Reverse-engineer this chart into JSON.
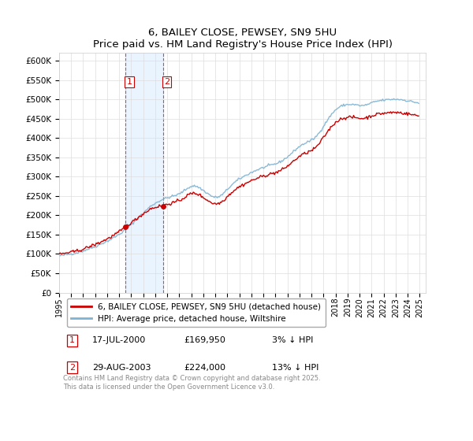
{
  "title": "6, BAILEY CLOSE, PEWSEY, SN9 5HU",
  "subtitle": "Price paid vs. HM Land Registry's House Price Index (HPI)",
  "ylim": [
    0,
    620000
  ],
  "yticks": [
    0,
    50000,
    100000,
    150000,
    200000,
    250000,
    300000,
    350000,
    400000,
    450000,
    500000,
    550000,
    600000
  ],
  "ytick_labels": [
    "£0",
    "£50K",
    "£100K",
    "£150K",
    "£200K",
    "£250K",
    "£300K",
    "£350K",
    "£400K",
    "£450K",
    "£500K",
    "£550K",
    "£600K"
  ],
  "hpi_color": "#7fb3d3",
  "price_color": "#cc0000",
  "shade_color": "#ddeeff",
  "sale1": {
    "year": 2000.542,
    "price": 169950,
    "date": "17-JUL-2000",
    "pct": "3%",
    "dir": "↓"
  },
  "sale2": {
    "year": 2003.663,
    "price": 224000,
    "date": "29-AUG-2003",
    "pct": "13%",
    "dir": "↓"
  },
  "legend_label_price": "6, BAILEY CLOSE, PEWSEY, SN9 5HU (detached house)",
  "legend_label_hpi": "HPI: Average price, detached house, Wiltshire",
  "footer": "Contains HM Land Registry data © Crown copyright and database right 2025.\nThis data is licensed under the Open Government Licence v3.0.",
  "hpi_monthly": [
    95000,
    95500,
    95800,
    96200,
    96700,
    97100,
    97600,
    98100,
    98600,
    99000,
    99400,
    99800,
    100200,
    100600,
    101000,
    101500,
    102100,
    102700,
    103400,
    104100,
    104800,
    105500,
    106200,
    107000,
    107800,
    108700,
    109600,
    110600,
    111600,
    112600,
    113600,
    114600,
    115600,
    116500,
    117400,
    118300,
    119200,
    120200,
    121200,
    122300,
    123500,
    124700,
    126000,
    127200,
    128400,
    129600,
    130800,
    132000,
    133200,
    134400,
    135600,
    137000,
    138500,
    140000,
    141500,
    143000,
    144500,
    146000,
    147500,
    149000,
    150600,
    152300,
    154200,
    156200,
    158300,
    160500,
    162800,
    165100,
    167300,
    169500,
    171700,
    173900,
    176100,
    178400,
    180700,
    183100,
    185600,
    188200,
    190800,
    193400,
    195900,
    198300,
    200700,
    203200,
    205600,
    208000,
    210400,
    212900,
    215400,
    217900,
    220400,
    222900,
    224800,
    226500,
    228000,
    229500,
    231000,
    232500,
    234000,
    235400,
    236800,
    238000,
    239200,
    240400,
    241500,
    242500,
    243400,
    244300,
    245100,
    245900,
    246700,
    247500,
    248200,
    249000,
    249800,
    250600,
    251400,
    252200,
    253200,
    254300,
    255500,
    257000,
    258600,
    260300,
    262100,
    264000,
    265900,
    267700,
    269500,
    271200,
    272700,
    273900,
    274800,
    275400,
    275700,
    275700,
    275400,
    274800,
    273900,
    272700,
    271200,
    269500,
    267700,
    265900,
    264100,
    262300,
    260500,
    258700,
    256900,
    255100,
    253300,
    251600,
    250000,
    248700,
    247700,
    247000,
    246700,
    246700,
    247000,
    247700,
    248700,
    250000,
    251700,
    253700,
    256000,
    258600,
    261300,
    264100,
    266900,
    269700,
    272400,
    275000,
    277500,
    279900,
    282200,
    284400,
    286500,
    288500,
    290400,
    292200,
    293900,
    295500,
    297000,
    298500,
    300000,
    301400,
    302800,
    304200,
    305600,
    307000,
    308300,
    309600,
    310800,
    312000,
    313200,
    314400,
    315500,
    316600,
    317700,
    318800,
    319800,
    320800,
    321700,
    322600,
    323500,
    324400,
    325300,
    326200,
    327000,
    327800,
    328600,
    329400,
    330100,
    330800,
    331500,
    332200,
    333000,
    333900,
    334900,
    336000,
    337300,
    338700,
    340200,
    341900,
    343600,
    345400,
    347300,
    349200,
    351200,
    353300,
    355500,
    357800,
    360200,
    362600,
    365000,
    367400,
    369700,
    371900,
    374000,
    376000,
    377900,
    379700,
    381400,
    382900,
    384400,
    385700,
    387000,
    388200,
    389400,
    390600,
    391800,
    393000,
    394400,
    396000,
    397800,
    399900,
    402300,
    405000,
    408000,
    411300,
    414800,
    418500,
    422400,
    426400,
    430500,
    434700,
    438800,
    442800,
    446700,
    450500,
    454100,
    457600,
    461000,
    464200,
    467200,
    470000,
    472500,
    474700,
    476700,
    478500,
    480100,
    481500,
    482700,
    483700,
    484500,
    485200,
    485700,
    486100,
    486400,
    486600,
    486700,
    486700,
    486700,
    486600,
    486400,
    486100,
    485700,
    485300,
    484800,
    484400,
    484000,
    483800,
    483700,
    483800,
    484000,
    484400,
    485000,
    485800,
    486700,
    487700,
    488700,
    489700,
    490700,
    491600,
    492500,
    493300,
    494100,
    494800,
    495400,
    495900,
    496400,
    496800,
    497200,
    497500,
    497800,
    498100,
    498400,
    498700,
    499000,
    499300,
    499500,
    499700,
    499900,
    500000,
    500100,
    500200,
    500200,
    500100,
    500000,
    499800,
    499600,
    499300,
    498900,
    498500,
    498100,
    497700,
    497200,
    496700,
    496200,
    495700,
    495200,
    494700,
    494200,
    493700,
    493200,
    492700,
    492200,
    491700,
    491100,
    490500
  ],
  "red_monthly": [
    95000,
    95500,
    95800,
    96200,
    96700,
    97100,
    97600,
    98100,
    98600,
    99000,
    99400,
    99800,
    100200,
    100600,
    101000,
    101500,
    102100,
    102700,
    103400,
    104100,
    104800,
    105500,
    106200,
    107000,
    107800,
    108700,
    109600,
    110600,
    111600,
    112600,
    113600,
    114600,
    115600,
    116500,
    117400,
    118300,
    119200,
    120200,
    121200,
    122300,
    123500,
    124700,
    126000,
    127200,
    128400,
    129600,
    130800,
    132000,
    133200,
    134400,
    135600,
    137000,
    138500,
    140000,
    141500,
    143000,
    144500,
    146000,
    147500,
    149000,
    150600,
    152300,
    154200,
    156200,
    158300,
    160500,
    162800,
    165100,
    169950,
    172000,
    173500,
    175000,
    176500,
    178000,
    179500,
    181000,
    182500,
    184000,
    185500,
    187000,
    188500,
    190000,
    191500,
    193000,
    194500,
    196000,
    197500,
    199000,
    200500,
    202000,
    203500,
    205000,
    206500,
    208000,
    209500,
    211000,
    212500,
    214000,
    215500,
    217000,
    218500,
    220000,
    221500,
    223000,
    224000,
    225500,
    226800,
    228000,
    229200,
    230400,
    231500,
    232600,
    233700,
    234800,
    235800,
    236800,
    237700,
    238600,
    239400,
    240100,
    240700,
    241200,
    241600,
    241900,
    242100,
    242200,
    242200,
    242100,
    241900,
    241600,
    241200,
    240700,
    240100,
    239400,
    238600,
    237700,
    236800,
    235800,
    234800,
    233700,
    232600,
    231500,
    230400,
    229300,
    228200,
    227100,
    226100,
    225100,
    224200,
    223400,
    222700,
    222100,
    221700,
    221400,
    221400,
    221700,
    222300,
    223200,
    224400,
    226000,
    228000,
    230400,
    233000,
    235800,
    238700,
    241700,
    244700,
    247700,
    250700,
    253700,
    256600,
    259400,
    262200,
    264900,
    267500,
    270100,
    272500,
    274800,
    277000,
    279100,
    281100,
    283100,
    285000,
    286800,
    288600,
    290400,
    292100,
    293800,
    295400,
    296900,
    298400,
    299800,
    301200,
    302600,
    304000,
    305300,
    306600,
    307900,
    309100,
    310300,
    311500,
    312600,
    313700,
    314800,
    315900,
    317000,
    318000,
    319000,
    320000,
    321000,
    321900,
    322800,
    323700,
    324600,
    325600,
    326700,
    328000,
    329500,
    331100,
    332900,
    334900,
    337000,
    339200,
    341600,
    344000,
    346500,
    349100,
    351800,
    354600,
    357400,
    360200,
    362900,
    365600,
    368200,
    370700,
    373100,
    375300,
    377400,
    379400,
    381200,
    382900,
    384400,
    385800,
    387100,
    388300,
    389400,
    390500,
    391500,
    392500,
    393700,
    395200,
    397000,
    399200,
    401700,
    404500,
    407600,
    411000,
    414600,
    418500,
    422600,
    426800,
    431100,
    435400,
    439700,
    443900,
    447900,
    451800,
    455400,
    458800,
    462000,
    465000,
    467800,
    470300,
    472600,
    474600,
    476400,
    478000,
    479300,
    480400,
    481300,
    482000,
    482500,
    482900,
    483200,
    483300,
    483300,
    483200,
    483000,
    482700,
    482300,
    481900,
    481400,
    481000,
    480500,
    480100,
    479700,
    479400,
    479100,
    479000,
    479000,
    479200,
    479500,
    480100,
    480800,
    481700,
    482700,
    483800,
    485000,
    486200,
    487400,
    488600,
    489700,
    490700,
    491700,
    492600,
    493400,
    494100,
    494700,
    495300,
    495800,
    496200,
    496600,
    496900,
    497200,
    497500,
    497700,
    497900,
    498100,
    498200,
    498300,
    498400,
    498400,
    498400,
    498300,
    498100,
    497900,
    497600,
    497200,
    496700,
    496100,
    495400,
    494600,
    493800,
    492900,
    492000,
    491000,
    440000,
    438000,
    436500,
    435500,
    435000,
    435000,
    435500,
    436500,
    438000,
    440000,
    442500
  ]
}
